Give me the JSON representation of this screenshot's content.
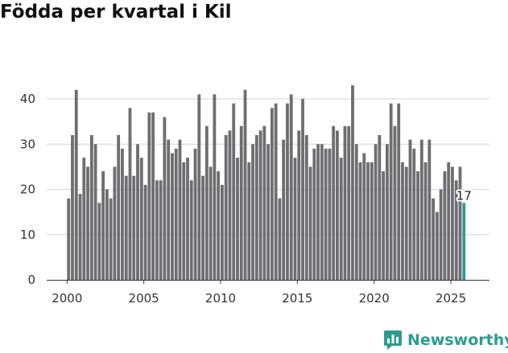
{
  "title": "Födda per kvartal i Kil",
  "brand": {
    "name": "Newsworthy",
    "icon": "newsworthy-chart-icon",
    "color": "#2a9d8f"
  },
  "chart_data": {
    "type": "bar",
    "title": "Födda per kvartal i Kil",
    "xlabel": "",
    "ylabel": "",
    "ylim": [
      0,
      45
    ],
    "yticks": [
      0,
      10,
      20,
      30,
      40
    ],
    "xticks": [
      2000,
      2005,
      2010,
      2015,
      2020,
      2025
    ],
    "x_start": 2000,
    "quarters_per_year": 4,
    "grid": true,
    "bar_color": "#6e6d72",
    "highlight_color": "#2a9d8f",
    "highlight_label": "17",
    "values": [
      18,
      32,
      42,
      19,
      27,
      25,
      32,
      30,
      17,
      24,
      20,
      18,
      25,
      32,
      29,
      23,
      38,
      23,
      30,
      27,
      21,
      37,
      37,
      22,
      22,
      36,
      31,
      28,
      29,
      31,
      26,
      27,
      22,
      29,
      41,
      23,
      34,
      25,
      41,
      24,
      21,
      32,
      33,
      39,
      27,
      34,
      42,
      26,
      30,
      32,
      33,
      34,
      30,
      38,
      39,
      18,
      31,
      39,
      41,
      27,
      33,
      40,
      32,
      25,
      29,
      30,
      30,
      29,
      29,
      34,
      33,
      27,
      34,
      34,
      43,
      30,
      26,
      28,
      26,
      26,
      30,
      32,
      24,
      30,
      39,
      34,
      39,
      26,
      25,
      31,
      29,
      24,
      31,
      26,
      31,
      18,
      15,
      20,
      24,
      26,
      25,
      22,
      25,
      17
    ]
  }
}
